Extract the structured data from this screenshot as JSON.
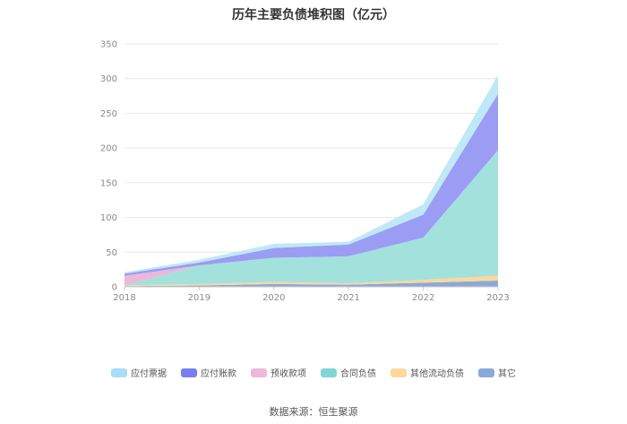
{
  "chart_data": {
    "type": "area",
    "stacked": true,
    "title": "历年主要负债堆积图（亿元）",
    "x": [
      "2018",
      "2019",
      "2020",
      "2021",
      "2022",
      "2023"
    ],
    "ylim": [
      0,
      350
    ],
    "yticks": [
      0,
      50,
      100,
      150,
      200,
      250,
      300,
      350
    ],
    "grid": true,
    "legend_position": "bottom",
    "series": [
      {
        "name": "其它",
        "color": "#8aa8d8",
        "values": [
          1,
          2,
          4,
          3,
          6,
          9
        ]
      },
      {
        "name": "其他流动负债",
        "color": "#fcd899",
        "values": [
          1,
          2,
          3,
          2,
          4,
          7
        ]
      },
      {
        "name": "合同负债",
        "color": "#a3e1dd",
        "values": [
          0,
          27,
          35,
          39,
          61,
          181
        ]
      },
      {
        "name": "预收款项",
        "color": "#ebb8d8",
        "values": [
          14,
          0,
          0,
          0,
          0,
          0
        ]
      },
      {
        "name": "应付账款",
        "color": "#9b9cf3",
        "values": [
          3,
          4,
          14,
          17,
          33,
          81
        ]
      },
      {
        "name": "应付票据",
        "color": "#bfe8f8",
        "values": [
          2,
          4,
          6,
          4,
          15,
          27
        ]
      }
    ],
    "legend_order": [
      "应付票据",
      "应付账款",
      "预收款项",
      "合同负债",
      "其他流动负债",
      "其它"
    ]
  },
  "legend_colors": {
    "应付票据": "#a8def6",
    "应付账款": "#7b7ef0",
    "预收款项": "#ecb8dc",
    "合同负债": "#7fd6d3",
    "其他流动负债": "#fdd99b",
    "其它": "#8aa8d8"
  },
  "footer": {
    "source": "数据来源：恒生聚源"
  }
}
